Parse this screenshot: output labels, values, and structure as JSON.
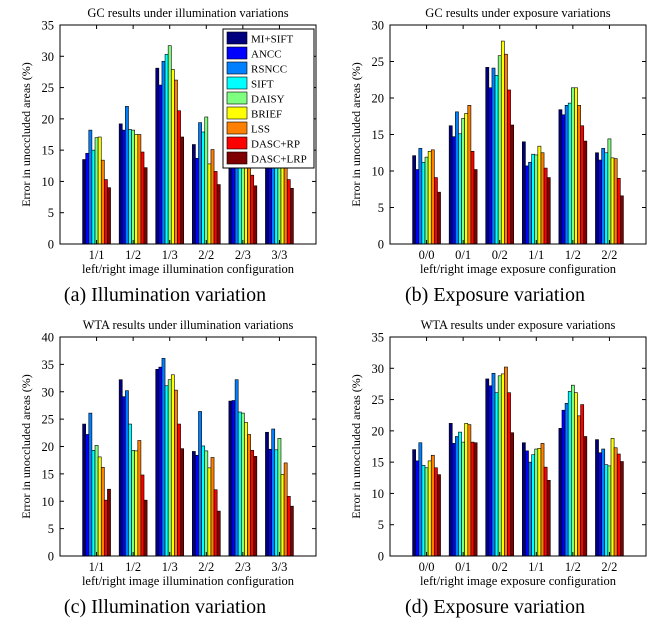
{
  "figure": {
    "legend": [
      {
        "name": "MI+SIFT",
        "color": "#00007f"
      },
      {
        "name": "ANCC",
        "color": "#0000ff"
      },
      {
        "name": "RSNCC",
        "color": "#007fff"
      },
      {
        "name": "SIFT",
        "color": "#00ffff"
      },
      {
        "name": "DAISY",
        "color": "#7fff7f"
      },
      {
        "name": "BRIEF",
        "color": "#ffff00"
      },
      {
        "name": "LSS",
        "color": "#ff7f00"
      },
      {
        "name": "DASC+RP",
        "color": "#ff0000"
      },
      {
        "name": "DASC+LRP",
        "color": "#7f0000"
      }
    ]
  },
  "chart_data": [
    {
      "type": "bar",
      "title": "GC results under illumination variations",
      "xlabel": "left/right image illumination configuration",
      "ylabel": "Error in unoccluded areas (%)",
      "caption": "(a) Illumination variation",
      "ylim": [
        0,
        35
      ],
      "yticks": [
        0,
        5,
        10,
        15,
        20,
        25,
        30,
        35
      ],
      "categories": [
        "1/1",
        "1/2",
        "1/3",
        "2/2",
        "2/3",
        "3/3"
      ],
      "series": [
        {
          "name": "MI+SIFT",
          "values": [
            13.5,
            19.2,
            28.1,
            15.9,
            18.3,
            14.7
          ]
        },
        {
          "name": "ANCC",
          "values": [
            14.5,
            18.2,
            25.4,
            13.7,
            16.5,
            13.4
          ]
        },
        {
          "name": "RSNCC",
          "values": [
            18.2,
            22.0,
            29.2,
            19.4,
            20.3,
            16.4
          ]
        },
        {
          "name": "SIFT",
          "values": [
            15.0,
            18.3,
            30.3,
            17.9,
            17.2,
            14.2
          ]
        },
        {
          "name": "DAISY",
          "values": [
            17.0,
            18.2,
            31.7,
            20.3,
            19.5,
            14.8
          ]
        },
        {
          "name": "BRIEF",
          "values": [
            17.1,
            17.5,
            27.9,
            12.8,
            17.8,
            13.9
          ]
        },
        {
          "name": "LSS",
          "values": [
            13.4,
            17.5,
            26.2,
            15.1,
            16.1,
            13.4
          ]
        },
        {
          "name": "DASC+RP",
          "values": [
            10.3,
            14.7,
            21.3,
            11.6,
            11.0,
            10.3
          ]
        },
        {
          "name": "DASC+LRP",
          "values": [
            9.0,
            12.2,
            17.1,
            9.5,
            9.3,
            8.9
          ]
        }
      ],
      "legend_position": "top-right"
    },
    {
      "type": "bar",
      "title": "GC results under exposure variations",
      "xlabel": "left/right image exposure configuration",
      "ylabel": "Error in unoccluded areas (%)",
      "caption": "(b) Exposure variation",
      "ylim": [
        0,
        30
      ],
      "yticks": [
        0,
        5,
        10,
        15,
        20,
        25,
        30
      ],
      "categories": [
        "0/0",
        "0/1",
        "0/2",
        "1/1",
        "1/2",
        "2/2"
      ],
      "series": [
        {
          "name": "MI+SIFT",
          "values": [
            12.1,
            16.2,
            24.2,
            14.0,
            18.4,
            12.5
          ]
        },
        {
          "name": "ANCC",
          "values": [
            10.2,
            14.7,
            21.4,
            10.7,
            17.7,
            11.5
          ]
        },
        {
          "name": "RSNCC",
          "values": [
            13.1,
            18.1,
            24.1,
            11.2,
            19.0,
            13.1
          ]
        },
        {
          "name": "SIFT",
          "values": [
            11.2,
            15.1,
            23.1,
            12.3,
            19.3,
            12.5
          ]
        },
        {
          "name": "DAISY",
          "values": [
            11.9,
            17.2,
            25.8,
            12.2,
            21.4,
            14.4
          ]
        },
        {
          "name": "BRIEF",
          "values": [
            12.7,
            17.9,
            27.8,
            13.4,
            21.4,
            11.8
          ]
        },
        {
          "name": "LSS",
          "values": [
            12.9,
            19.0,
            26.0,
            12.5,
            19.0,
            11.7
          ]
        },
        {
          "name": "DASC+RP",
          "values": [
            9.1,
            12.7,
            21.1,
            10.4,
            16.2,
            9.0
          ]
        },
        {
          "name": "DASC+LRP",
          "values": [
            7.1,
            10.2,
            16.3,
            9.1,
            14.1,
            6.6
          ]
        }
      ]
    },
    {
      "type": "bar",
      "title": "WTA results under illumination variations",
      "xlabel": "left/right image illumination configuration",
      "ylabel": "Error in unoccluded areas (%)",
      "caption": "(c) Illumination variation",
      "ylim": [
        0,
        40
      ],
      "yticks": [
        0,
        5,
        10,
        15,
        20,
        25,
        30,
        35,
        40
      ],
      "categories": [
        "1/1",
        "1/2",
        "1/3",
        "2/2",
        "2/3",
        "3/3"
      ],
      "series": [
        {
          "name": "MI+SIFT",
          "values": [
            24.1,
            32.2,
            34.1,
            19.1,
            28.3,
            22.6
          ]
        },
        {
          "name": "ANCC",
          "values": [
            22.2,
            29.1,
            34.5,
            18.4,
            28.4,
            19.5
          ]
        },
        {
          "name": "RSNCC",
          "values": [
            26.1,
            30.2,
            36.1,
            26.4,
            32.2,
            23.2
          ]
        },
        {
          "name": "SIFT",
          "values": [
            19.3,
            24.1,
            31.1,
            20.1,
            26.3,
            19.4
          ]
        },
        {
          "name": "DAISY",
          "values": [
            20.2,
            19.3,
            32.2,
            19.2,
            26.1,
            21.5
          ]
        },
        {
          "name": "BRIEF",
          "values": [
            18.1,
            19.2,
            33.1,
            16.1,
            24.4,
            14.9
          ]
        },
        {
          "name": "LSS",
          "values": [
            16.2,
            21.1,
            30.3,
            18.0,
            22.2,
            17.0
          ]
        },
        {
          "name": "DASC+RP",
          "values": [
            10.2,
            14.8,
            24.1,
            12.1,
            19.3,
            10.9
          ]
        },
        {
          "name": "DASC+LRP",
          "values": [
            12.2,
            10.2,
            19.6,
            8.2,
            18.2,
            9.1
          ]
        }
      ]
    },
    {
      "type": "bar",
      "title": "WTA results under exposure variations",
      "xlabel": "left/right image exposure configuration",
      "ylabel": "Error in unoccluded areas (%)",
      "caption": "(d) Exposure variation",
      "ylim": [
        0,
        35
      ],
      "yticks": [
        0,
        5,
        10,
        15,
        20,
        25,
        30,
        35
      ],
      "categories": [
        "0/0",
        "0/1",
        "0/2",
        "1/1",
        "1/2",
        "2/2"
      ],
      "series": [
        {
          "name": "MI+SIFT",
          "values": [
            17.0,
            21.2,
            28.3,
            18.1,
            20.4,
            18.6
          ]
        },
        {
          "name": "ANCC",
          "values": [
            15.2,
            18.0,
            27.2,
            16.8,
            23.3,
            16.5
          ]
        },
        {
          "name": "RSNCC",
          "values": [
            18.1,
            19.1,
            29.2,
            15.0,
            24.4,
            17.1
          ]
        },
        {
          "name": "SIFT",
          "values": [
            14.5,
            19.8,
            26.1,
            16.2,
            26.3,
            14.6
          ]
        },
        {
          "name": "DAISY",
          "values": [
            14.1,
            18.2,
            28.8,
            17.1,
            27.3,
            14.4
          ]
        },
        {
          "name": "BRIEF",
          "values": [
            15.2,
            21.2,
            29.1,
            17.2,
            26.1,
            18.8
          ]
        },
        {
          "name": "LSS",
          "values": [
            16.1,
            21.0,
            30.2,
            18.0,
            22.4,
            17.3
          ]
        },
        {
          "name": "DASC+RP",
          "values": [
            14.1,
            18.2,
            26.1,
            14.2,
            24.2,
            16.3
          ]
        },
        {
          "name": "DASC+LRP",
          "values": [
            13.0,
            18.1,
            19.7,
            12.1,
            19.1,
            15.1
          ]
        }
      ]
    }
  ]
}
